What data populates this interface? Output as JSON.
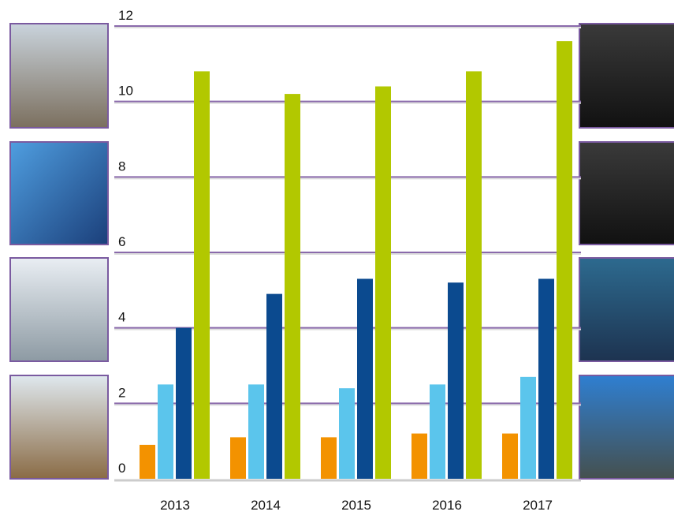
{
  "chart_data": {
    "type": "bar",
    "categories": [
      "2013",
      "2014",
      "2015",
      "2016",
      "2017"
    ],
    "series": [
      {
        "color": "#f39200",
        "values": [
          0.9,
          1.1,
          1.1,
          1.2,
          1.2
        ]
      },
      {
        "color": "#5bc5ec",
        "values": [
          2.5,
          2.5,
          2.4,
          2.5,
          2.7
        ]
      },
      {
        "color": "#0b4a8f",
        "values": [
          4.0,
          4.9,
          5.3,
          5.2,
          5.3
        ]
      },
      {
        "color": "#b2c800",
        "values": [
          10.8,
          10.2,
          10.4,
          10.8,
          11.6
        ]
      }
    ],
    "ylim": [
      0,
      12
    ],
    "yticks": [
      0,
      2,
      4,
      6,
      8,
      10,
      12
    ],
    "grid": true
  }
}
